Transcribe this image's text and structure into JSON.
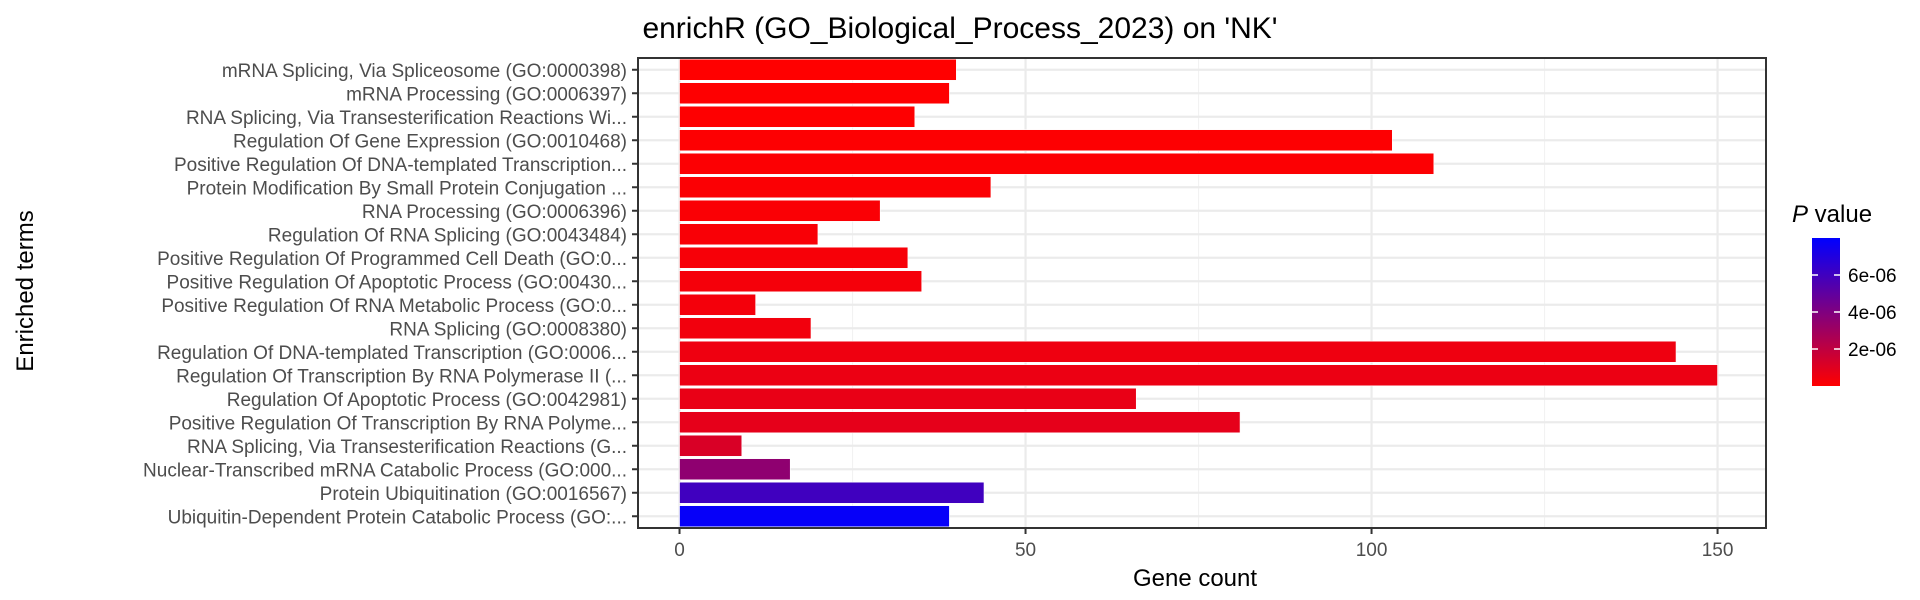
{
  "chart_data": {
    "type": "bar",
    "orientation": "horizontal",
    "title": "enrichR (GO_Biological_Process_2023) on 'NK'",
    "xlabel": "Gene count",
    "ylabel": "Enriched terms",
    "xlim": [
      -6,
      157
    ],
    "x_ticks": [
      0,
      50,
      100,
      150
    ],
    "grid": true,
    "categories": [
      "mRNA Splicing, Via Spliceosome (GO:0000398)",
      "mRNA Processing (GO:0006397)",
      "RNA Splicing, Via Transesterification Reactions Wi...",
      "Regulation Of Gene Expression (GO:0010468)",
      "Positive Regulation Of DNA-templated Transcription...",
      "Protein Modification By Small Protein Conjugation ...",
      "RNA Processing (GO:0006396)",
      "Regulation Of RNA Splicing (GO:0043484)",
      "Positive Regulation Of Programmed Cell Death (GO:0...",
      "Positive Regulation Of Apoptotic Process (GO:00430...",
      "Positive Regulation Of RNA Metabolic Process (GO:0...",
      "RNA Splicing (GO:0008380)",
      "Regulation Of DNA-templated Transcription (GO:0006...",
      "Regulation Of Transcription By RNA Polymerase II (...",
      "Regulation Of Apoptotic Process (GO:0042981)",
      "Positive Regulation Of Transcription By RNA Polyme...",
      "RNA Splicing, Via Transesterification Reactions (G...",
      "Nuclear-Transcribed mRNA Catabolic Process (GO:000...",
      "Protein Ubiquitination (GO:0016567)",
      "Ubiquitin-Dependent Protein Catabolic Process (GO:..."
    ],
    "values": [
      40,
      39,
      34,
      103,
      109,
      45,
      29,
      20,
      33,
      35,
      11,
      19,
      144,
      150,
      66,
      81,
      9,
      16,
      44,
      39
    ],
    "p_values": [
      1e-08,
      2e-08,
      3e-08,
      5e-08,
      8e-08,
      1.2e-07,
      1.5e-07,
      2e-07,
      2.5e-07,
      3e-07,
      3.5e-07,
      4e-07,
      5e-07,
      6e-07,
      7e-07,
      8e-07,
      1.2e-06,
      3.5e-06,
      6e-06,
      7.8e-06
    ],
    "legend": {
      "title_italic": "P",
      "title_rest": " value",
      "placement": "right",
      "min": 0,
      "max": 8e-06,
      "ticks": [
        2e-06,
        4e-06,
        6e-06
      ],
      "tick_labels": [
        "2e-06",
        "4e-06",
        "6e-06"
      ],
      "low_color": "#ff0000",
      "high_color": "#0000ff"
    },
    "x_tick_labels": [
      "0",
      "50",
      "100",
      "150"
    ]
  }
}
